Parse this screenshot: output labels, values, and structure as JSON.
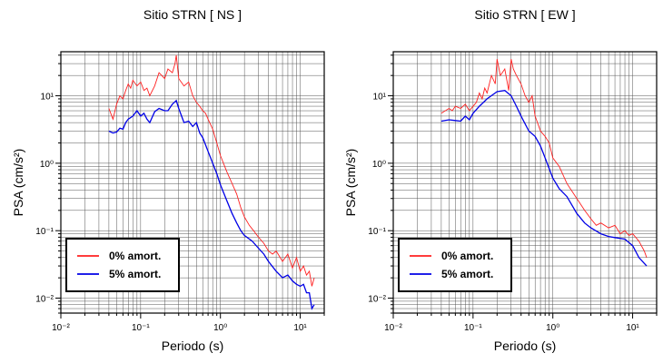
{
  "chart_data": [
    {
      "type": "line",
      "title": "Sitio STRN [ NS ]",
      "xlabel": "Periodo (s)",
      "ylabel": "PSA (cm/s²)",
      "xscale": "log",
      "yscale": "log",
      "xlim": [
        0.01,
        20
      ],
      "ylim": [
        0.006,
        45
      ],
      "x_ticks": [
        "10⁻²",
        "10⁻¹",
        "10⁰",
        "10¹"
      ],
      "y_ticks": [
        "10⁻²",
        "10⁻¹",
        "10⁰",
        "10¹"
      ],
      "grid": true,
      "legend_position": "bottom-left",
      "series": [
        {
          "name": "0% amort.",
          "color": "#ff2020",
          "x": [
            0.04,
            0.045,
            0.05,
            0.055,
            0.06,
            0.065,
            0.07,
            0.075,
            0.08,
            0.09,
            0.1,
            0.11,
            0.12,
            0.13,
            0.15,
            0.17,
            0.2,
            0.22,
            0.25,
            0.27,
            0.28,
            0.3,
            0.35,
            0.4,
            0.45,
            0.5,
            0.55,
            0.6,
            0.65,
            0.7,
            0.8,
            0.9,
            1.0,
            1.2,
            1.4,
            1.6,
            1.8,
            2.0,
            2.3,
            2.6,
            3.0,
            3.5,
            4.0,
            4.5,
            5.0,
            6.0,
            7.0,
            8.0,
            9.0,
            10.0,
            11.0,
            12.0,
            13.0,
            14.0,
            15.0
          ],
          "values": [
            6.5,
            4.5,
            7.5,
            10,
            9,
            12,
            15,
            13,
            17,
            14,
            16,
            12,
            13,
            10,
            14,
            22,
            18,
            25,
            22,
            30,
            40,
            18,
            14,
            16,
            10,
            8,
            7,
            6,
            5.5,
            4.5,
            3.2,
            2.0,
            1.3,
            0.75,
            0.5,
            0.35,
            0.22,
            0.16,
            0.12,
            0.1,
            0.08,
            0.065,
            0.05,
            0.045,
            0.05,
            0.035,
            0.045,
            0.028,
            0.04,
            0.025,
            0.03,
            0.022,
            0.025,
            0.015,
            0.02
          ]
        },
        {
          "name": "5% amort.",
          "color": "#0000e6",
          "x": [
            0.04,
            0.045,
            0.05,
            0.055,
            0.06,
            0.065,
            0.07,
            0.08,
            0.09,
            0.1,
            0.11,
            0.12,
            0.13,
            0.15,
            0.17,
            0.2,
            0.22,
            0.25,
            0.28,
            0.3,
            0.35,
            0.4,
            0.45,
            0.5,
            0.55,
            0.6,
            0.7,
            0.8,
            0.9,
            1.0,
            1.2,
            1.4,
            1.6,
            1.8,
            2.0,
            2.5,
            3.0,
            3.5,
            4.0,
            5.0,
            6.0,
            7.0,
            8.0,
            9.0,
            10.0,
            11.0,
            12.0,
            13.0,
            14.0,
            15.0
          ],
          "values": [
            3.0,
            2.8,
            2.9,
            3.3,
            3.2,
            4.0,
            4.5,
            5.0,
            6.0,
            5.0,
            5.5,
            4.5,
            4.0,
            5.8,
            6.5,
            6.0,
            6.0,
            7.5,
            8.5,
            6.5,
            4.0,
            4.2,
            3.5,
            4.0,
            2.8,
            2.4,
            1.5,
            1.0,
            0.7,
            0.48,
            0.28,
            0.18,
            0.13,
            0.1,
            0.085,
            0.07,
            0.055,
            0.045,
            0.035,
            0.025,
            0.02,
            0.022,
            0.018,
            0.016,
            0.015,
            0.016,
            0.012,
            0.012,
            0.007,
            0.008
          ]
        }
      ]
    },
    {
      "type": "line",
      "title": "Sitio STRN [ EW ]",
      "xlabel": "Periodo (s)",
      "ylabel": "PSA (cm/s²)",
      "xscale": "log",
      "yscale": "log",
      "xlim": [
        0.01,
        20
      ],
      "ylim": [
        0.006,
        45
      ],
      "x_ticks": [
        "10⁻²",
        "10⁻¹",
        "10⁰",
        "10¹"
      ],
      "y_ticks": [
        "10⁻²",
        "10⁻¹",
        "10⁰",
        "10¹"
      ],
      "grid": true,
      "legend_position": "bottom-left",
      "series": [
        {
          "name": "0% amort.",
          "color": "#ff2020",
          "x": [
            0.04,
            0.045,
            0.05,
            0.055,
            0.06,
            0.07,
            0.08,
            0.09,
            0.1,
            0.11,
            0.12,
            0.13,
            0.14,
            0.15,
            0.17,
            0.19,
            0.2,
            0.22,
            0.25,
            0.28,
            0.3,
            0.32,
            0.35,
            0.4,
            0.45,
            0.5,
            0.55,
            0.6,
            0.7,
            0.8,
            0.9,
            1.0,
            1.2,
            1.5,
            2.0,
            2.5,
            3.0,
            3.5,
            4.0,
            5.0,
            6.0,
            7.0,
            8.0,
            9.0,
            10.0,
            12.0,
            14.0,
            15.0
          ],
          "values": [
            5.5,
            6.0,
            6.5,
            6.0,
            7.0,
            6.5,
            7.5,
            6.0,
            7.0,
            8.0,
            11.0,
            9.0,
            13.0,
            11.0,
            20.0,
            15.0,
            35.0,
            20.0,
            25.0,
            12.0,
            35.0,
            25.0,
            20.0,
            15.0,
            10.0,
            8.0,
            10.0,
            5.0,
            3.0,
            2.5,
            2.0,
            1.2,
            0.9,
            0.5,
            0.3,
            0.2,
            0.15,
            0.12,
            0.13,
            0.11,
            0.12,
            0.09,
            0.1,
            0.085,
            0.09,
            0.07,
            0.05,
            0.04
          ]
        },
        {
          "name": "5% amort.",
          "color": "#0000e6",
          "x": [
            0.04,
            0.05,
            0.06,
            0.07,
            0.08,
            0.09,
            0.1,
            0.12,
            0.15,
            0.2,
            0.25,
            0.3,
            0.35,
            0.4,
            0.5,
            0.6,
            0.7,
            0.8,
            1.0,
            1.2,
            1.5,
            2.0,
            2.5,
            3.0,
            4.0,
            5.0,
            6.0,
            8.0,
            10.0,
            12.0,
            15.0
          ],
          "values": [
            4.2,
            4.4,
            4.3,
            4.2,
            5.0,
            4.4,
            5.5,
            7.0,
            9.0,
            11.5,
            12.0,
            10.0,
            7.0,
            5.0,
            3.0,
            2.5,
            1.8,
            1.2,
            0.6,
            0.42,
            0.32,
            0.18,
            0.13,
            0.11,
            0.09,
            0.082,
            0.079,
            0.075,
            0.06,
            0.04,
            0.03
          ]
        }
      ]
    }
  ]
}
